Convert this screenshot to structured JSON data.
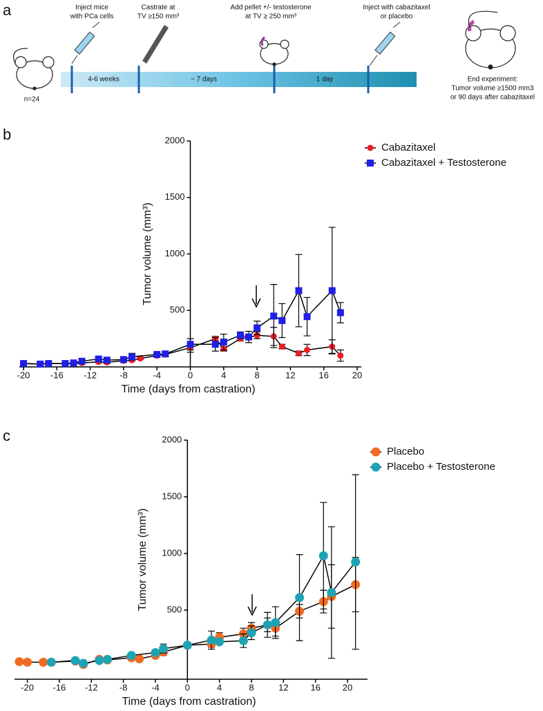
{
  "panel_labels": [
    "a",
    "b",
    "c"
  ],
  "timeline": {
    "steps": [
      [
        "Inject mice",
        "with PCa cells"
      ],
      [
        "Castrate at",
        "TV ≥150 mm³"
      ],
      [
        "Add pellet +/- testosterone",
        "at TV ≥ 250 mm³"
      ],
      [
        "Inject with cabazitaxel",
        "or placebo"
      ]
    ],
    "intervals": [
      "4-6 weeks",
      "~ 7 days",
      "1 day"
    ],
    "cohort": "n=24",
    "end": [
      "End experiment:",
      "Tumor volume ≥1500 mm3",
      "or 90 days after cabazitaxel"
    ]
  },
  "chart_data": [
    {
      "type": "line",
      "ylabel": "Tumor volume (mm³)",
      "xlabel": "Time (days from castration)",
      "xlim": [
        -20.5,
        20.5
      ],
      "ylim": [
        0,
        2000
      ],
      "xticks": [
        -20,
        -16,
        -12,
        -8,
        -4,
        0,
        4,
        8,
        12,
        16,
        20
      ],
      "yticks": [
        500,
        1000,
        1500,
        2000
      ],
      "legend": "top-right",
      "series": [
        {
          "name": "Cabazitaxel",
          "color": "#ee1c25",
          "marker": "circle",
          "x": [
            -20,
            -18,
            -17,
            -15,
            -14,
            -13,
            -11,
            -10,
            -8,
            -7,
            -6,
            -4,
            -3,
            0,
            3,
            4,
            6,
            7,
            8,
            10,
            11,
            13,
            14,
            17,
            18
          ],
          "values": [
            30,
            25,
            30,
            30,
            30,
            35,
            45,
            40,
            55,
            60,
            75,
            100,
            110,
            170,
            250,
            160,
            250,
            260,
            280,
            270,
            180,
            120,
            150,
            180,
            100
          ],
          "errors": [
            5,
            5,
            5,
            5,
            5,
            5,
            10,
            10,
            10,
            10,
            10,
            15,
            15,
            40,
            20,
            20,
            20,
            20,
            30,
            80,
            20,
            20,
            50,
            60,
            50
          ]
        },
        {
          "name": "Cabazitaxel  + Testosterone",
          "color": "#1f1fe6",
          "marker": "square",
          "x": [
            -20,
            -18,
            -17,
            -15,
            -14,
            -13,
            -11,
            -10,
            -8,
            -7,
            -4,
            -3,
            0,
            3,
            4,
            6,
            7,
            8,
            10,
            11,
            13,
            14,
            17,
            18
          ],
          "values": [
            30,
            25,
            30,
            30,
            35,
            50,
            70,
            60,
            65,
            90,
            110,
            115,
            200,
            200,
            220,
            280,
            265,
            345,
            450,
            410,
            675,
            445,
            675,
            480
          ],
          "errors": [
            5,
            5,
            5,
            5,
            5,
            10,
            15,
            15,
            15,
            30,
            15,
            15,
            50,
            60,
            70,
            30,
            50,
            60,
            280,
            150,
            320,
            170,
            560,
            90
          ]
        }
      ]
    },
    {
      "type": "line",
      "ylabel": "Tumor volume (mm³)",
      "xlabel": "Time (days from castration)",
      "xlim": [
        -21.6,
        22.5
      ],
      "ylim": [
        -110,
        2000
      ],
      "xticks": [
        -20,
        -16,
        -12,
        -8,
        -4,
        0,
        4,
        8,
        12,
        16,
        20
      ],
      "yticks": [
        500,
        1000,
        1500,
        2000
      ],
      "legend": "top-right",
      "series": [
        {
          "name": "Placebo",
          "color": "#f26b21",
          "marker": "circle",
          "x": [
            -21,
            -20,
            -18,
            -17,
            -14,
            -13,
            -11,
            -10,
            -7,
            -6,
            -4,
            -3,
            0,
            3,
            4,
            7,
            8,
            10,
            11,
            14,
            17,
            18,
            21
          ],
          "values": [
            45,
            40,
            40,
            40,
            50,
            20,
            65,
            60,
            80,
            70,
            100,
            130,
            190,
            200,
            260,
            290,
            340,
            370,
            340,
            490,
            575,
            620,
            725
          ],
          "errors": [
            10,
            10,
            10,
            10,
            10,
            10,
            15,
            15,
            20,
            20,
            20,
            30,
            20,
            30,
            40,
            50,
            50,
            60,
            70,
            60,
            100,
            280,
            240
          ]
        },
        {
          "name": "Placebo + Testosterone",
          "color": "#1ea3b5",
          "marker": "circle",
          "x": [
            -17,
            -14,
            -13,
            -11,
            -10,
            -7,
            -4,
            -3,
            0,
            3,
            4,
            7,
            8,
            10,
            11,
            14,
            17,
            18,
            21
          ],
          "values": [
            40,
            55,
            30,
            55,
            65,
            100,
            125,
            160,
            190,
            235,
            220,
            230,
            300,
            370,
            390,
            610,
            980,
            655,
            925
          ],
          "errors": [
            10,
            10,
            10,
            15,
            15,
            20,
            20,
            40,
            20,
            80,
            20,
            60,
            60,
            110,
            140,
            380,
            470,
            580,
            770
          ]
        }
      ]
    }
  ]
}
